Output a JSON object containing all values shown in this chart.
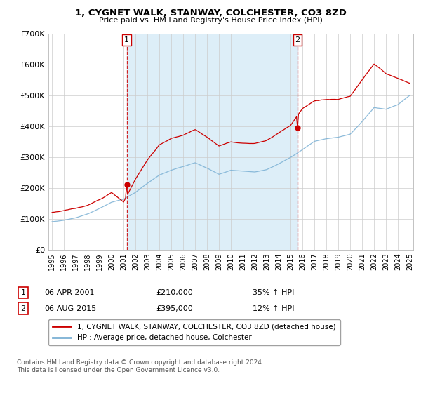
{
  "title_line1": "1, CYGNET WALK, STANWAY, COLCHESTER, CO3 8ZD",
  "title_line2": "Price paid vs. HM Land Registry's House Price Index (HPI)",
  "ylim": [
    0,
    700000
  ],
  "yticks": [
    0,
    100000,
    200000,
    300000,
    400000,
    500000,
    600000,
    700000
  ],
  "ytick_labels": [
    "£0",
    "£100K",
    "£200K",
    "£300K",
    "£400K",
    "£500K",
    "£600K",
    "£700K"
  ],
  "sale1_label": "06-APR-2001",
  "sale1_price_str": "£210,000",
  "sale1_hpi": "35% ↑ HPI",
  "sale1_x": 2001.27,
  "sale1_y": 210000,
  "sale2_label": "06-AUG-2015",
  "sale2_price_str": "£395,000",
  "sale2_hpi": "12% ↑ HPI",
  "sale2_x": 2015.58,
  "sale2_y": 395000,
  "legend_line1": "1, CYGNET WALK, STANWAY, COLCHESTER, CO3 8ZD (detached house)",
  "legend_line2": "HPI: Average price, detached house, Colchester",
  "footer": "Contains HM Land Registry data © Crown copyright and database right 2024.\nThis data is licensed under the Open Government Licence v3.0.",
  "line_color_red": "#cc0000",
  "line_color_blue": "#7ab0d4",
  "shade_color": "#ddeef8",
  "background_color": "#ffffff",
  "grid_color": "#cccccc",
  "xlim_left": 1994.7,
  "xlim_right": 2025.3
}
